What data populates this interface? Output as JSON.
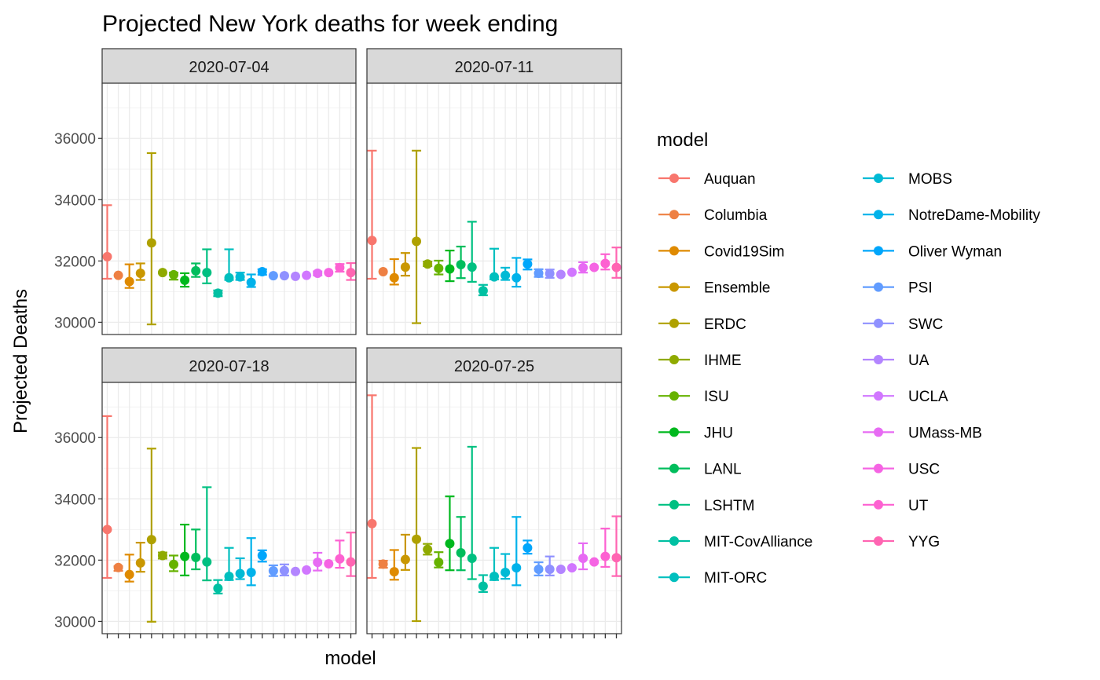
{
  "chart_data": {
    "type": "scatter",
    "title": "Projected New York deaths for week ending",
    "xlabel": "model",
    "ylabel": "Projected Deaths",
    "ylim": [
      29600,
      37800
    ],
    "yticks": [
      30000,
      32000,
      34000,
      36000
    ],
    "y_tick_labels": [
      "30000",
      "32000",
      "34000",
      "36000"
    ],
    "grid": true,
    "x_tick_labels_shown": false,
    "legend": {
      "title": "model",
      "placement": "right",
      "columns": 2
    },
    "models": [
      "Auquan",
      "Columbia",
      "Covid19Sim",
      "Ensemble",
      "ERDC",
      "IHME",
      "ISU",
      "JHU",
      "LANL",
      "LSHTM",
      "MIT-CovAlliance",
      "MIT-ORC",
      "MOBS",
      "NotreDame-Mobility",
      "Oliver Wyman",
      "PSI",
      "SWC",
      "UA",
      "UCLA",
      "UMass-MB",
      "USC",
      "UT",
      "YYG"
    ],
    "colors": [
      "#F8766D",
      "#EE8043",
      "#DF8A00",
      "#C99700",
      "#AFA100",
      "#8FAA00",
      "#66B200",
      "#00B81E",
      "#00BD5C",
      "#00C081",
      "#00C0A2",
      "#00BFBE",
      "#00BAD5",
      "#00B2EA",
      "#00A6FB",
      "#619CFF",
      "#8F91FF",
      "#B385FF",
      "#D177FF",
      "#E76BF3",
      "#F564E3",
      "#FD61D1",
      "#FF65B2"
    ],
    "panels": [
      {
        "strip": "2020-07-04",
        "series": [
          {
            "x": "Auquan",
            "y": 32140,
            "lower": 31420,
            "upper": 33820
          },
          {
            "x": "Columbia",
            "y": 31530,
            "lower": null,
            "upper": null
          },
          {
            "x": "Covid19Sim",
            "y": 31330,
            "lower": 31120,
            "upper": 31890
          },
          {
            "x": "Ensemble",
            "y": 31600,
            "lower": 31380,
            "upper": 31920
          },
          {
            "x": "ERDC",
            "y": 32590,
            "lower": 29930,
            "upper": 35520
          },
          {
            "x": "IHME",
            "y": 31620,
            "lower": null,
            "upper": null
          },
          {
            "x": "ISU",
            "y": 31550,
            "lower": 31390,
            "upper": 31620
          },
          {
            "x": "JHU",
            "y": 31370,
            "lower": 31160,
            "upper": 31600
          },
          {
            "x": "LANL",
            "y": 31680,
            "lower": 31480,
            "upper": 31920
          },
          {
            "x": "LSHTM",
            "y": 31620,
            "lower": 31270,
            "upper": 32380
          },
          {
            "x": "MIT-CovAlliance",
            "y": 30950,
            "lower": 30850,
            "upper": 31040
          },
          {
            "x": "MIT-ORC",
            "y": 31450,
            "lower": 31380,
            "upper": 32380
          },
          {
            "x": "MOBS",
            "y": 31480,
            "lower": 31380,
            "upper": 31620
          },
          {
            "x": "NotreDame-Mobility",
            "y": 31300,
            "lower": 31150,
            "upper": 31560
          },
          {
            "x": "Oliver Wyman",
            "y": 31650,
            "lower": 31550,
            "upper": 31730
          },
          {
            "x": "PSI",
            "y": 31520,
            "lower": null,
            "upper": null
          },
          {
            "x": "SWC",
            "y": 31520,
            "lower": null,
            "upper": null
          },
          {
            "x": "UA",
            "y": 31500,
            "lower": null,
            "upper": null
          },
          {
            "x": "UCLA",
            "y": 31530,
            "lower": null,
            "upper": null
          },
          {
            "x": "UMass-MB",
            "y": 31600,
            "lower": 31530,
            "upper": 31660
          },
          {
            "x": "USC",
            "y": 31620,
            "lower": null,
            "upper": null
          },
          {
            "x": "UT",
            "y": 31780,
            "lower": 31650,
            "upper": 31900
          },
          {
            "x": "YYG",
            "y": 31620,
            "lower": 31380,
            "upper": 31930
          }
        ]
      },
      {
        "strip": "2020-07-11",
        "series": [
          {
            "x": "Auquan",
            "y": 32670,
            "lower": 31420,
            "upper": 35600
          },
          {
            "x": "Columbia",
            "y": 31650,
            "lower": null,
            "upper": null
          },
          {
            "x": "Covid19Sim",
            "y": 31450,
            "lower": 31230,
            "upper": 32060
          },
          {
            "x": "Ensemble",
            "y": 31800,
            "lower": 31520,
            "upper": 32260
          },
          {
            "x": "ERDC",
            "y": 32640,
            "lower": 29970,
            "upper": 35600
          },
          {
            "x": "IHME",
            "y": 31900,
            "lower": 31830,
            "upper": 31980
          },
          {
            "x": "ISU",
            "y": 31760,
            "lower": 31560,
            "upper": 32010
          },
          {
            "x": "JHU",
            "y": 31740,
            "lower": 31340,
            "upper": 32340
          },
          {
            "x": "LANL",
            "y": 31880,
            "lower": 31440,
            "upper": 32470
          },
          {
            "x": "LSHTM",
            "y": 31800,
            "lower": 31320,
            "upper": 33280
          },
          {
            "x": "MIT-CovAlliance",
            "y": 31030,
            "lower": 30880,
            "upper": 31220
          },
          {
            "x": "MIT-ORC",
            "y": 31480,
            "lower": 31400,
            "upper": 32400
          },
          {
            "x": "MOBS",
            "y": 31530,
            "lower": 31380,
            "upper": 31780
          },
          {
            "x": "NotreDame-Mobility",
            "y": 31450,
            "lower": 31160,
            "upper": 32100
          },
          {
            "x": "Oliver Wyman",
            "y": 31900,
            "lower": 31720,
            "upper": 32050
          },
          {
            "x": "PSI",
            "y": 31600,
            "lower": 31480,
            "upper": 31730
          },
          {
            "x": "SWC",
            "y": 31590,
            "lower": 31450,
            "upper": 31720
          },
          {
            "x": "UA",
            "y": 31560,
            "lower": null,
            "upper": null
          },
          {
            "x": "UCLA",
            "y": 31630,
            "lower": null,
            "upper": null
          },
          {
            "x": "UMass-MB",
            "y": 31780,
            "lower": 31620,
            "upper": 31960
          },
          {
            "x": "USC",
            "y": 31790,
            "lower": null,
            "upper": null
          },
          {
            "x": "UT",
            "y": 31920,
            "lower": 31720,
            "upper": 32220
          },
          {
            "x": "YYG",
            "y": 31790,
            "lower": 31450,
            "upper": 32440
          }
        ]
      },
      {
        "strip": "2020-07-18",
        "series": [
          {
            "x": "Auquan",
            "y": 33000,
            "lower": 31420,
            "upper": 36700
          },
          {
            "x": "Columbia",
            "y": 31760,
            "lower": 31650,
            "upper": 31800
          },
          {
            "x": "Covid19Sim",
            "y": 31530,
            "lower": 31300,
            "upper": 32180
          },
          {
            "x": "Ensemble",
            "y": 31910,
            "lower": 31620,
            "upper": 32570
          },
          {
            "x": "ERDC",
            "y": 32670,
            "lower": 29990,
            "upper": 35640
          },
          {
            "x": "IHME",
            "y": 32150,
            "lower": 32050,
            "upper": 32250
          },
          {
            "x": "ISU",
            "y": 31860,
            "lower": 31640,
            "upper": 32150
          },
          {
            "x": "JHU",
            "y": 32120,
            "lower": 31500,
            "upper": 33160
          },
          {
            "x": "LANL",
            "y": 32090,
            "lower": 31700,
            "upper": 33000
          },
          {
            "x": "LSHTM",
            "y": 31940,
            "lower": 31340,
            "upper": 34380
          },
          {
            "x": "MIT-CovAlliance",
            "y": 31080,
            "lower": 30910,
            "upper": 31350
          },
          {
            "x": "MIT-ORC",
            "y": 31470,
            "lower": 31350,
            "upper": 32400
          },
          {
            "x": "MOBS",
            "y": 31560,
            "lower": 31380,
            "upper": 32060
          },
          {
            "x": "NotreDame-Mobility",
            "y": 31600,
            "lower": 31180,
            "upper": 32720
          },
          {
            "x": "Oliver Wyman",
            "y": 32150,
            "lower": 31950,
            "upper": 32320
          },
          {
            "x": "PSI",
            "y": 31650,
            "lower": 31480,
            "upper": 31830
          },
          {
            "x": "SWC",
            "y": 31660,
            "lower": 31500,
            "upper": 31860
          },
          {
            "x": "UA",
            "y": 31630,
            "lower": null,
            "upper": null
          },
          {
            "x": "UCLA",
            "y": 31680,
            "lower": null,
            "upper": null
          },
          {
            "x": "UMass-MB",
            "y": 31930,
            "lower": 31660,
            "upper": 32240
          },
          {
            "x": "USC",
            "y": 31880,
            "lower": null,
            "upper": null
          },
          {
            "x": "UT",
            "y": 32040,
            "lower": 31750,
            "upper": 32640
          },
          {
            "x": "YYG",
            "y": 31940,
            "lower": 31480,
            "upper": 32900
          }
        ]
      },
      {
        "strip": "2020-07-25",
        "series": [
          {
            "x": "Auquan",
            "y": 33190,
            "lower": 31420,
            "upper": 37380
          },
          {
            "x": "Columbia",
            "y": 31870,
            "lower": 31750,
            "upper": 31980
          },
          {
            "x": "Covid19Sim",
            "y": 31620,
            "lower": 31360,
            "upper": 32330
          },
          {
            "x": "Ensemble",
            "y": 32020,
            "lower": 31680,
            "upper": 32830
          },
          {
            "x": "ERDC",
            "y": 32680,
            "lower": 30010,
            "upper": 35660
          },
          {
            "x": "IHME",
            "y": 32350,
            "lower": 32180,
            "upper": 32530
          },
          {
            "x": "ISU",
            "y": 31930,
            "lower": 31760,
            "upper": 32260
          },
          {
            "x": "JHU",
            "y": 32540,
            "lower": 31670,
            "upper": 34080
          },
          {
            "x": "LANL",
            "y": 32240,
            "lower": 31670,
            "upper": 33410
          },
          {
            "x": "LSHTM",
            "y": 32060,
            "lower": 31380,
            "upper": 35700
          },
          {
            "x": "MIT-CovAlliance",
            "y": 31150,
            "lower": 30960,
            "upper": 31510
          },
          {
            "x": "MIT-ORC",
            "y": 31470,
            "lower": 31350,
            "upper": 32400
          },
          {
            "x": "MOBS",
            "y": 31600,
            "lower": 31390,
            "upper": 32200
          },
          {
            "x": "NotreDame-Mobility",
            "y": 31750,
            "lower": 31180,
            "upper": 33410
          },
          {
            "x": "Oliver Wyman",
            "y": 32400,
            "lower": 32210,
            "upper": 32640
          },
          {
            "x": "PSI",
            "y": 31700,
            "lower": 31500,
            "upper": 31930
          },
          {
            "x": "SWC",
            "y": 31700,
            "lower": 31500,
            "upper": 32120
          },
          {
            "x": "UA",
            "y": 31700,
            "lower": null,
            "upper": null
          },
          {
            "x": "UCLA",
            "y": 31750,
            "lower": null,
            "upper": null
          },
          {
            "x": "UMass-MB",
            "y": 32060,
            "lower": 31700,
            "upper": 32550
          },
          {
            "x": "USC",
            "y": 31940,
            "lower": null,
            "upper": null
          },
          {
            "x": "UT",
            "y": 32120,
            "lower": 31780,
            "upper": 33030
          },
          {
            "x": "YYG",
            "y": 32080,
            "lower": 31480,
            "upper": 33430
          }
        ]
      }
    ]
  }
}
